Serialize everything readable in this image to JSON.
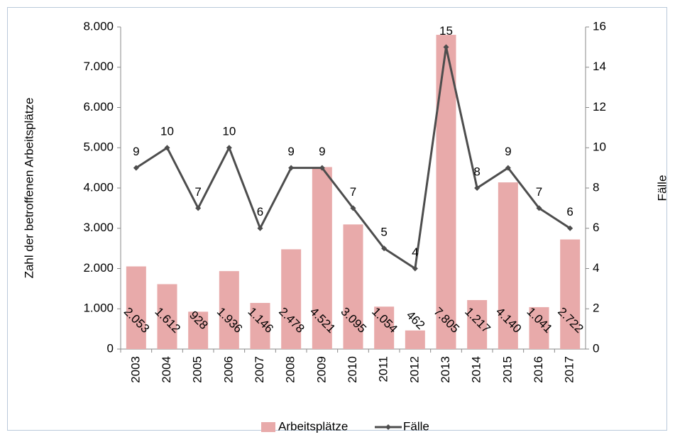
{
  "chart_data": {
    "type": "bar_line",
    "y_label": "Zahl der betroffenen Arbeitsplätze",
    "y2_label": "Fälle",
    "categories": [
      "2003",
      "2004",
      "2005",
      "2006",
      "2007",
      "2008",
      "2009",
      "2010",
      "2011",
      "2012",
      "2013",
      "2014",
      "2015",
      "2016",
      "2017"
    ],
    "series": [
      {
        "name": "Arbeitsplätze",
        "type": "bar",
        "color": "#e8aaaa",
        "values": [
          2053,
          1612,
          928,
          1936,
          1146,
          2478,
          4521,
          3095,
          1054,
          462,
          7805,
          1217,
          4140,
          1041,
          2722
        ],
        "value_labels": [
          "2.053",
          "1.612",
          "928",
          "1.936",
          "1.146",
          "2.478",
          "4.521",
          "3.095",
          "1.054",
          "462",
          "7.805",
          "1.217",
          "4.140",
          "1.041",
          "2.722"
        ]
      },
      {
        "name": "Fälle",
        "type": "line",
        "color": "#4d4d4d",
        "axis": "y2",
        "values": [
          9,
          10,
          7,
          10,
          6,
          9,
          9,
          7,
          5,
          4,
          15,
          8,
          9,
          7,
          6
        ]
      }
    ],
    "ylim": [
      0,
      8000
    ],
    "yticks": [
      {
        "value": 0,
        "label": "0"
      },
      {
        "value": 1000,
        "label": "1.000"
      },
      {
        "value": 2000,
        "label": "2.000"
      },
      {
        "value": 3000,
        "label": "3.000"
      },
      {
        "value": 4000,
        "label": "4.000"
      },
      {
        "value": 5000,
        "label": "5.000"
      },
      {
        "value": 6000,
        "label": "6.000"
      },
      {
        "value": 7000,
        "label": "7.000"
      },
      {
        "value": 8000,
        "label": "8.000"
      }
    ],
    "y2lim": [
      0,
      16
    ],
    "y2ticks": [
      0,
      2,
      4,
      6,
      8,
      10,
      12,
      14,
      16
    ],
    "legend": "bottom"
  }
}
